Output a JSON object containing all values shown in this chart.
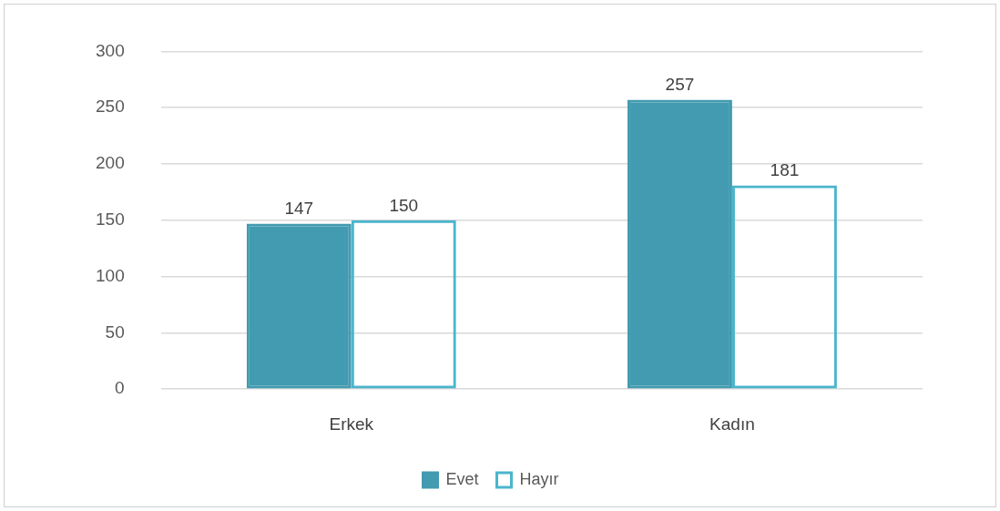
{
  "chart_data": {
    "type": "bar",
    "categories": [
      "Erkek",
      "Kadın"
    ],
    "series": [
      {
        "name": "Evet",
        "color": "#429bb0",
        "values": [
          147,
          257
        ]
      },
      {
        "name": "Hayır",
        "color": "#4bb5cc",
        "values": [
          150,
          181
        ]
      }
    ],
    "ylim": [
      0,
      300
    ],
    "yticks": [
      0,
      50,
      100,
      150,
      200,
      250,
      300
    ],
    "grid": "y",
    "legend": "bottom",
    "data_labels": true
  }
}
